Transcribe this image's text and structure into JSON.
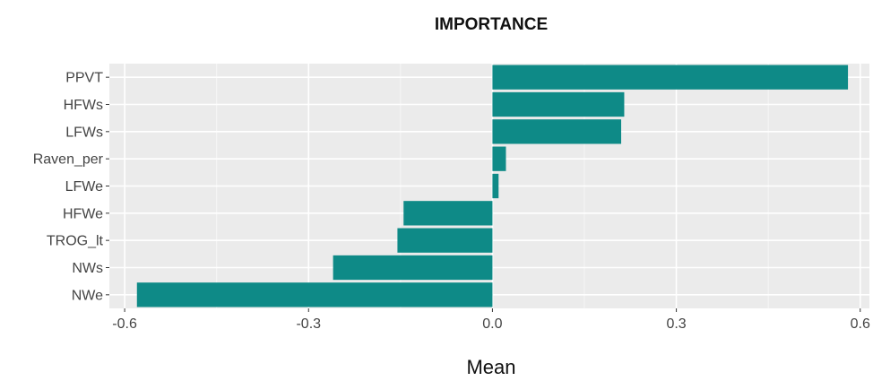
{
  "chart_data": {
    "type": "bar",
    "orientation": "horizontal",
    "title": "IMPORTANCE",
    "xlabel": "Mean",
    "ylabel": "",
    "categories": [
      "PPVT",
      "HFWs",
      "LFWs",
      "Raven_per",
      "LFWe",
      "HFWe",
      "TROG_lt",
      "NWs",
      "NWe"
    ],
    "values": [
      0.58,
      0.215,
      0.21,
      0.022,
      0.01,
      -0.145,
      -0.155,
      -0.26,
      -0.58
    ],
    "xlim": [
      -0.625,
      0.615
    ],
    "xticks": [
      -0.6,
      -0.3,
      0.0,
      0.3,
      0.6
    ],
    "xtick_labels": [
      "-0.6",
      "-0.3",
      "0.0",
      "0.3",
      "0.6"
    ],
    "grid": true,
    "legend": "none",
    "bar_color": "#0e8a87",
    "panel_color": "#ebebeb"
  }
}
